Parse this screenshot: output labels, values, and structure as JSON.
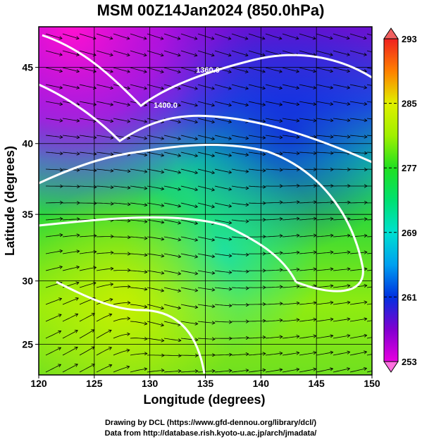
{
  "title": "MSM 00Z14Jan2024 (850.0hPa)",
  "x_axis": {
    "label": "Longitude (degrees)",
    "lim": [
      120,
      150
    ],
    "ticks": [
      120,
      125,
      130,
      135,
      140,
      145,
      150
    ]
  },
  "y_axis": {
    "label": "Latitude  (degrees)",
    "lim": [
      22.5,
      47.5
    ],
    "ticks": [
      25,
      30,
      35,
      40,
      45
    ],
    "projection": "mercator"
  },
  "colorbar": {
    "lim": [
      253,
      293
    ],
    "ticks": [
      253,
      261,
      269,
      277,
      285,
      293
    ]
  },
  "contour_labels": [
    "1360.0",
    "1400.0"
  ],
  "credits": [
    "Drawing by DCL (https://www.gfd-dennou.org/library/dcl/)",
    "Data from http://database.rish.kyoto-u.ac.jp/arch/jmadata/"
  ]
}
